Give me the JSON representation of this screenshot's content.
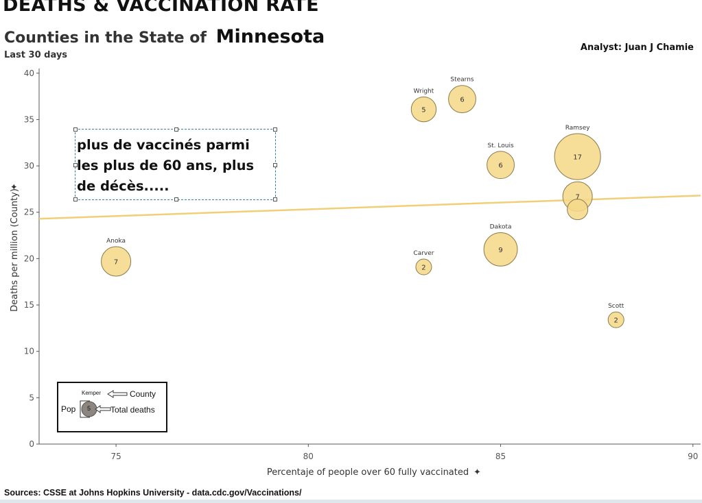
{
  "header": {
    "title": "DEATHS & VACCINATION RATE",
    "subtitle_prefix": "Counties in the State of",
    "state": "Minnesota",
    "period": "Last 30 days",
    "analyst": "Analyst: Juan J Chamie"
  },
  "annotation": {
    "text": "plus de vaccinés  parmi les plus de 60 ans, plus de décès....."
  },
  "legend": {
    "sample_county": "Kemper",
    "county_label": "County",
    "pop_label": "Pop",
    "sample_value": "5",
    "deaths_label": "Total deaths"
  },
  "footer": {
    "sources": "Sources: CSSE at Johns Hopkins University - data.cdc.gov/Vaccinations/"
  },
  "colors": {
    "bubble_fill": "#f5d88a",
    "bubble_stroke": "#8a7a4a",
    "trend": "#f0cf78",
    "legend_bubble": "#8c8580"
  },
  "chart_data": {
    "type": "scatter",
    "title": "DEATHS & VACCINATION RATE",
    "xlabel": "Percentaje of people over 60 fully vaccinated",
    "ylabel": "Deaths per million (County)",
    "xlim": [
      73,
      90.2
    ],
    "ylim": [
      0,
      40.5
    ],
    "x_ticks": [
      75,
      80,
      85,
      90
    ],
    "y_ticks": [
      0,
      5,
      10,
      15,
      20,
      25,
      30,
      35,
      40
    ],
    "grid": false,
    "size_encoding": "Total deaths (bubble size reflects county population)",
    "points": [
      {
        "county": "Anoka",
        "x": 75,
        "y": 19.7,
        "deaths": 7,
        "show_label": true
      },
      {
        "county": "Carver",
        "x": 83,
        "y": 19.1,
        "deaths": 2,
        "show_label": true
      },
      {
        "county": "Wright",
        "x": 83,
        "y": 36.1,
        "deaths": 5,
        "show_label": true
      },
      {
        "county": "Stearns",
        "x": 84,
        "y": 37.2,
        "deaths": 6,
        "show_label": true
      },
      {
        "county": "St. Louis",
        "x": 85,
        "y": 30.1,
        "deaths": 6,
        "show_label": true
      },
      {
        "county": "Dakota",
        "x": 85,
        "y": 21.0,
        "deaths": 9,
        "show_label": true
      },
      {
        "county": "Ramsey",
        "x": 87,
        "y": 31.0,
        "deaths": 17,
        "show_label": true
      },
      {
        "county": "",
        "x": 87,
        "y": 26.7,
        "deaths": 7,
        "show_label": false
      },
      {
        "county": "",
        "x": 87,
        "y": 25.3,
        "deaths": null,
        "show_label": false
      },
      {
        "county": "Scott",
        "x": 88,
        "y": 13.4,
        "deaths": 2,
        "show_label": true
      }
    ],
    "trendline": {
      "x": [
        73,
        90.2
      ],
      "y": [
        24.3,
        26.8
      ]
    }
  }
}
